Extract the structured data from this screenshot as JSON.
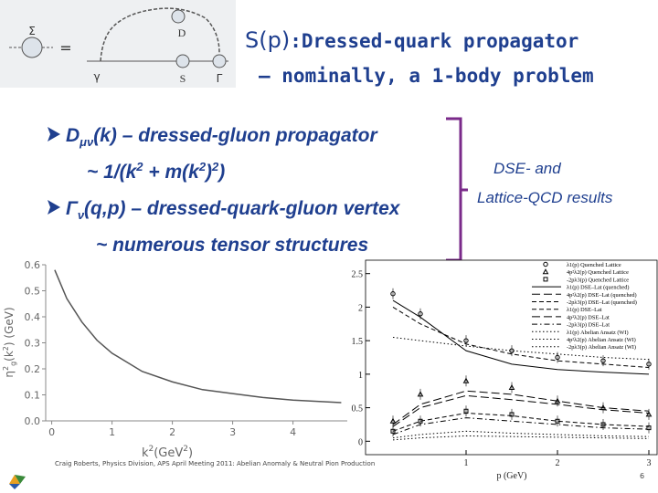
{
  "header": {
    "symbol": "S(p)",
    "title": ":Dressed-quark propagator",
    "subtitle": "– nominally, a 1-body problem"
  },
  "diagram": {
    "labels": [
      "Σ",
      "=",
      "D",
      "γ",
      "S",
      "Γ"
    ]
  },
  "bullets": [
    {
      "parts": [
        "D",
        "μν",
        "(k) – dressed-gluon propagator"
      ]
    },
    {
      "parts": [
        "~ 1/(k",
        "2",
        " + m(k",
        "2",
        ")",
        "2",
        ")"
      ]
    },
    {
      "parts": [
        "Γ",
        "ν",
        "(q,p) – dressed-quark-gluon vertex"
      ]
    },
    {
      "parts": [
        "~ numerous tensor structures"
      ]
    }
  ],
  "side_note": [
    "DSE- and",
    "Lattice-QCD results"
  ],
  "footer": {
    "credit": "Craig Roberts, Physics Division, APS April Meeting 2011: Abelian Anomaly & Neutral Pion Production",
    "page": "6"
  },
  "chart_data": [
    {
      "type": "line",
      "color": "#555555",
      "x_label": [
        "k",
        "2",
        "(GeV",
        "2",
        ")"
      ],
      "y_label": [
        "η",
        "2",
        "g",
        "(k",
        "2",
        ") (GeV)"
      ],
      "x": [
        0.05,
        0.25,
        0.5,
        0.75,
        1,
        1.5,
        2,
        2.5,
        3,
        3.5,
        4,
        4.8
      ],
      "values": [
        0.58,
        0.47,
        0.38,
        0.31,
        0.26,
        0.19,
        0.15,
        0.12,
        0.105,
        0.09,
        0.08,
        0.07
      ],
      "xlim": [
        -0.1,
        4.9
      ],
      "ylim": [
        0,
        0.6
      ],
      "xticks": [
        0,
        1,
        2,
        3,
        4
      ],
      "yticks": [
        {
          "value": 0,
          "label": "0.0"
        },
        0.1,
        0.2,
        0.3,
        0.4,
        0.5,
        0.6
      ]
    },
    {
      "type": "line",
      "x_label": "p (GeV)",
      "x": [
        0.2,
        0.5,
        1,
        1.5,
        2,
        2.5,
        3
      ],
      "xlim": [
        -0.1,
        3.1
      ],
      "ylim": [
        -0.2,
        2.7
      ],
      "xticks": [
        1,
        2,
        3
      ],
      "yticks": [
        0,
        0.5,
        1,
        1.5,
        2,
        2.5
      ],
      "series": [
        {
          "name": "λ1(p) Quenched Lattice",
          "color": "#000000",
          "style": "circle",
          "values": [
            2.2,
            1.9,
            1.5,
            1.35,
            1.25,
            1.2,
            1.15
          ]
        },
        {
          "name": "4p²λ2(p) Quenched Lattice",
          "color": "#000000",
          "style": "triangle",
          "values": [
            0.3,
            0.7,
            0.9,
            0.8,
            0.6,
            0.5,
            0.4
          ]
        },
        {
          "name": "-2pλ3(p) Quenched Lattice",
          "color": "#000000",
          "style": "square",
          "values": [
            0.15,
            0.3,
            0.45,
            0.4,
            0.3,
            0.25,
            0.2
          ]
        },
        {
          "name": "λ1(p) DSE–Lat (quenched)",
          "color": "#000000",
          "style": "solid",
          "values": [
            2.1,
            1.85,
            1.35,
            1.15,
            1.07,
            1.03,
            1.0
          ]
        },
        {
          "name": "4p²λ2(p) DSE–Lat (quenched)",
          "color": "#000000",
          "style": "longdash",
          "values": [
            0.25,
            0.55,
            0.75,
            0.7,
            0.6,
            0.5,
            0.45
          ]
        },
        {
          "name": "-2pλ3(p) DSE–Lat (quenched)",
          "color": "#000000",
          "style": "dash",
          "values": [
            0.15,
            0.3,
            0.42,
            0.38,
            0.3,
            0.25,
            0.22
          ]
        },
        {
          "name": "λ1(p) DSE–Lat",
          "color": "#000000",
          "style": "dash",
          "values": [
            2.0,
            1.75,
            1.45,
            1.3,
            1.2,
            1.15,
            1.1
          ]
        },
        {
          "name": "4p²λ2(p) DSE–Lat",
          "color": "#000000",
          "style": "longdash",
          "values": [
            0.22,
            0.5,
            0.68,
            0.62,
            0.55,
            0.47,
            0.42
          ]
        },
        {
          "name": "-2pλ3(p) DSE–Lat",
          "color": "#000000",
          "style": "dashdot",
          "values": [
            0.1,
            0.25,
            0.35,
            0.3,
            0.25,
            0.2,
            0.18
          ]
        },
        {
          "name": "λ1(p) Abelian Ansatz (WI)",
          "color": "#000000",
          "style": "dotted",
          "values": [
            1.55,
            1.5,
            1.42,
            1.35,
            1.3,
            1.25,
            1.22
          ]
        },
        {
          "name": "4p²λ2(p) Abelian Ansatz (WI)",
          "color": "#000000",
          "style": "dotted",
          "values": [
            0.05,
            0.1,
            0.15,
            0.12,
            0.1,
            0.08,
            0.07
          ]
        },
        {
          "name": "-2pλ3(p) Abelian Ansatz (WI)",
          "color": "#000000",
          "style": "dotted",
          "values": [
            0.02,
            0.05,
            0.08,
            0.07,
            0.06,
            0.05,
            0.04
          ]
        }
      ]
    }
  ]
}
